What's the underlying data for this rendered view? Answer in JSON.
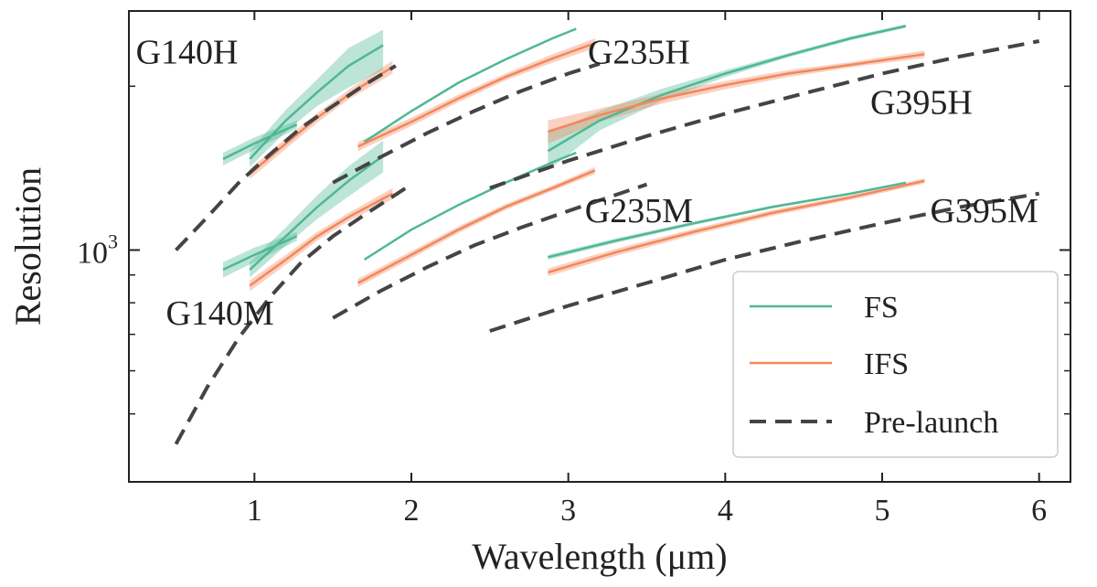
{
  "chart_data": {
    "type": "line",
    "xlabel": "Wavelength (μm)",
    "ylabel": "Resolution",
    "xlim": [
      0.2,
      6.2
    ],
    "ylim": [
      375,
      2750
    ],
    "yscale": "log",
    "x_ticks": [
      1,
      2,
      3,
      4,
      5,
      6
    ],
    "x_tick_labels": [
      "1",
      "2",
      "3",
      "4",
      "5",
      "6"
    ],
    "y_major_tick": 1000,
    "y_major_tick_base": "10",
    "y_major_tick_exp": "3",
    "y_minor_ticks": [
      500,
      600,
      700,
      800,
      900,
      2000
    ],
    "grid": false,
    "legend_position": "lower-right",
    "legend": [
      {
        "label": "FS",
        "color": "#4fb795",
        "style": "solid"
      },
      {
        "label": "IFS",
        "color": "#f2875c",
        "style": "solid"
      },
      {
        "label": "Pre-launch",
        "color": "#444444",
        "style": "dashed"
      }
    ],
    "grating_labels": [
      {
        "text": "G140H",
        "x": 0.57,
        "y": 2200
      },
      {
        "text": "G235H",
        "x": 3.45,
        "y": 2200
      },
      {
        "text": "G395H",
        "x": 5.25,
        "y": 1780
      },
      {
        "text": "G140M",
        "x": 0.78,
        "y": 730
      },
      {
        "text": "G235M",
        "x": 3.45,
        "y": 1125
      },
      {
        "text": "G395M",
        "x": 5.65,
        "y": 1125
      }
    ],
    "series": [
      {
        "name": "FS",
        "band": "G140H",
        "x": [
          0.97,
          1.2,
          1.4,
          1.6,
          1.82
        ],
        "y": [
          1470,
          1730,
          1950,
          2180,
          2380
        ],
        "band_lo": [
          1420,
          1650,
          1840,
          1990,
          2140
        ],
        "band_hi": [
          1520,
          1810,
          2060,
          2350,
          2540
        ]
      },
      {
        "name": "FS",
        "band": "G140H",
        "x": [
          0.8,
          1.0,
          1.27
        ],
        "y": [
          1470,
          1570,
          1700
        ],
        "band_lo": [
          1430,
          1530,
          1670
        ],
        "band_hi": [
          1510,
          1610,
          1730
        ]
      },
      {
        "name": "IFS",
        "band": "G140H",
        "x": [
          0.97,
          1.2,
          1.4,
          1.6,
          1.88
        ],
        "y": [
          1380,
          1570,
          1750,
          1930,
          2170
        ],
        "band_lo": [
          1350,
          1535,
          1715,
          1890,
          2110
        ],
        "band_hi": [
          1410,
          1605,
          1785,
          1970,
          2230
        ]
      },
      {
        "name": "Pre-launch",
        "band": "G140H",
        "x": [
          0.5,
          0.7,
          0.9,
          1.1,
          1.3,
          1.5,
          1.7,
          1.9
        ],
        "y": [
          1000,
          1150,
          1330,
          1500,
          1680,
          1840,
          2010,
          2180
        ]
      },
      {
        "name": "FS",
        "band": "G140M",
        "x": [
          0.97,
          1.2,
          1.4,
          1.6,
          1.82
        ],
        "y": [
          920,
          1060,
          1200,
          1340,
          1490
        ],
        "band_lo": [
          890,
          1020,
          1140,
          1255,
          1390
        ],
        "band_hi": [
          950,
          1100,
          1260,
          1425,
          1590
        ]
      },
      {
        "name": "FS",
        "band": "G140M",
        "x": [
          0.8,
          1.0,
          1.27
        ],
        "y": [
          920,
          980,
          1060
        ],
        "band_lo": [
          890,
          950,
          1040
        ],
        "band_hi": [
          950,
          1010,
          1080
        ]
      },
      {
        "name": "IFS",
        "band": "G140M",
        "x": [
          0.97,
          1.2,
          1.4,
          1.6,
          1.88
        ],
        "y": [
          860,
          960,
          1060,
          1150,
          1270
        ],
        "band_lo": [
          840,
          940,
          1040,
          1130,
          1240
        ],
        "band_hi": [
          880,
          980,
          1080,
          1170,
          1300
        ]
      },
      {
        "name": "Pre-launch",
        "band": "G140M",
        "x": [
          0.5,
          0.7,
          0.9,
          1.1,
          1.3,
          1.5,
          1.7,
          2.0
        ],
        "y": [
          440,
          560,
          690,
          820,
          950,
          1060,
          1160,
          1320
        ]
      },
      {
        "name": "FS",
        "band": "G235H",
        "x": [
          1.7,
          2.0,
          2.3,
          2.6,
          2.9,
          3.05
        ],
        "y": [
          1580,
          1800,
          2030,
          2240,
          2450,
          2550
        ]
      },
      {
        "name": "IFS",
        "band": "G235H",
        "x": [
          1.66,
          2.0,
          2.3,
          2.6,
          2.9,
          3.17
        ],
        "y": [
          1550,
          1720,
          1900,
          2080,
          2250,
          2400
        ],
        "band_lo": [
          1520,
          1690,
          1870,
          2050,
          2210,
          2350
        ],
        "band_hi": [
          1580,
          1750,
          1930,
          2110,
          2290,
          2450
        ]
      },
      {
        "name": "Pre-launch",
        "band": "G235H",
        "x": [
          1.5,
          1.8,
          2.1,
          2.4,
          2.7,
          3.0,
          3.2
        ],
        "y": [
          1330,
          1480,
          1640,
          1800,
          1960,
          2110,
          2200
        ]
      },
      {
        "name": "FS",
        "band": "G235M",
        "x": [
          1.7,
          2.0,
          2.3,
          2.6,
          2.9,
          3.05
        ],
        "y": [
          960,
          1090,
          1210,
          1330,
          1450,
          1510
        ]
      },
      {
        "name": "IFS",
        "band": "G235M",
        "x": [
          1.66,
          2.0,
          2.3,
          2.6,
          2.9,
          3.17
        ],
        "y": [
          870,
          980,
          1090,
          1200,
          1300,
          1400
        ],
        "band_lo": [
          855,
          965,
          1075,
          1185,
          1285,
          1380
        ],
        "band_hi": [
          885,
          995,
          1105,
          1215,
          1315,
          1420
        ]
      },
      {
        "name": "Pre-launch",
        "band": "G235M",
        "x": [
          1.5,
          1.8,
          2.1,
          2.4,
          2.7,
          3.0,
          3.5
        ],
        "y": [
          750,
          840,
          930,
          1020,
          1100,
          1180,
          1320
        ]
      },
      {
        "name": "FS",
        "band": "G395H",
        "x": [
          2.87,
          3.2,
          3.6,
          4.0,
          4.4,
          4.8,
          5.15
        ],
        "y": [
          1520,
          1730,
          1930,
          2110,
          2280,
          2450,
          2580
        ],
        "band_lo": [
          1400,
          1660,
          1880,
          2080,
          2260,
          2430,
          2560
        ],
        "band_hi": [
          1640,
          1800,
          1980,
          2140,
          2300,
          2470,
          2600
        ]
      },
      {
        "name": "IFS",
        "band": "G395H",
        "x": [
          2.87,
          3.2,
          3.6,
          4.0,
          4.4,
          4.8,
          5.27
        ],
        "y": [
          1650,
          1770,
          1900,
          2010,
          2110,
          2190,
          2290
        ],
        "band_lo": [
          1570,
          1720,
          1860,
          1975,
          2080,
          2165,
          2255
        ],
        "band_hi": [
          1730,
          1820,
          1940,
          2045,
          2140,
          2215,
          2325
        ]
      },
      {
        "name": "Pre-launch",
        "band": "G395H",
        "x": [
          2.5,
          3.0,
          3.5,
          4.0,
          4.5,
          5.0,
          5.5,
          6.0
        ],
        "y": [
          1300,
          1460,
          1620,
          1780,
          1940,
          2110,
          2270,
          2420
        ]
      },
      {
        "name": "FS",
        "band": "G395M",
        "x": [
          2.87,
          3.3,
          3.8,
          4.3,
          4.8,
          5.15
        ],
        "y": [
          970,
          1040,
          1120,
          1200,
          1270,
          1330
        ],
        "band_lo": [
          960,
          1030,
          1112,
          1193,
          1264,
          1325
        ],
        "band_hi": [
          980,
          1050,
          1128,
          1207,
          1276,
          1335
        ]
      },
      {
        "name": "IFS",
        "band": "G395M",
        "x": [
          2.87,
          3.3,
          3.8,
          4.3,
          4.8,
          5.27
        ],
        "y": [
          910,
          990,
          1080,
          1170,
          1250,
          1340
        ],
        "band_lo": [
          895,
          975,
          1066,
          1156,
          1237,
          1325
        ],
        "band_hi": [
          925,
          1005,
          1094,
          1184,
          1263,
          1355
        ]
      },
      {
        "name": "Pre-launch",
        "band": "G395M",
        "x": [
          2.5,
          3.0,
          3.5,
          4.0,
          4.5,
          5.0,
          5.5,
          6.0
        ],
        "y": [
          710,
          790,
          870,
          960,
          1040,
          1120,
          1200,
          1270
        ]
      }
    ]
  }
}
